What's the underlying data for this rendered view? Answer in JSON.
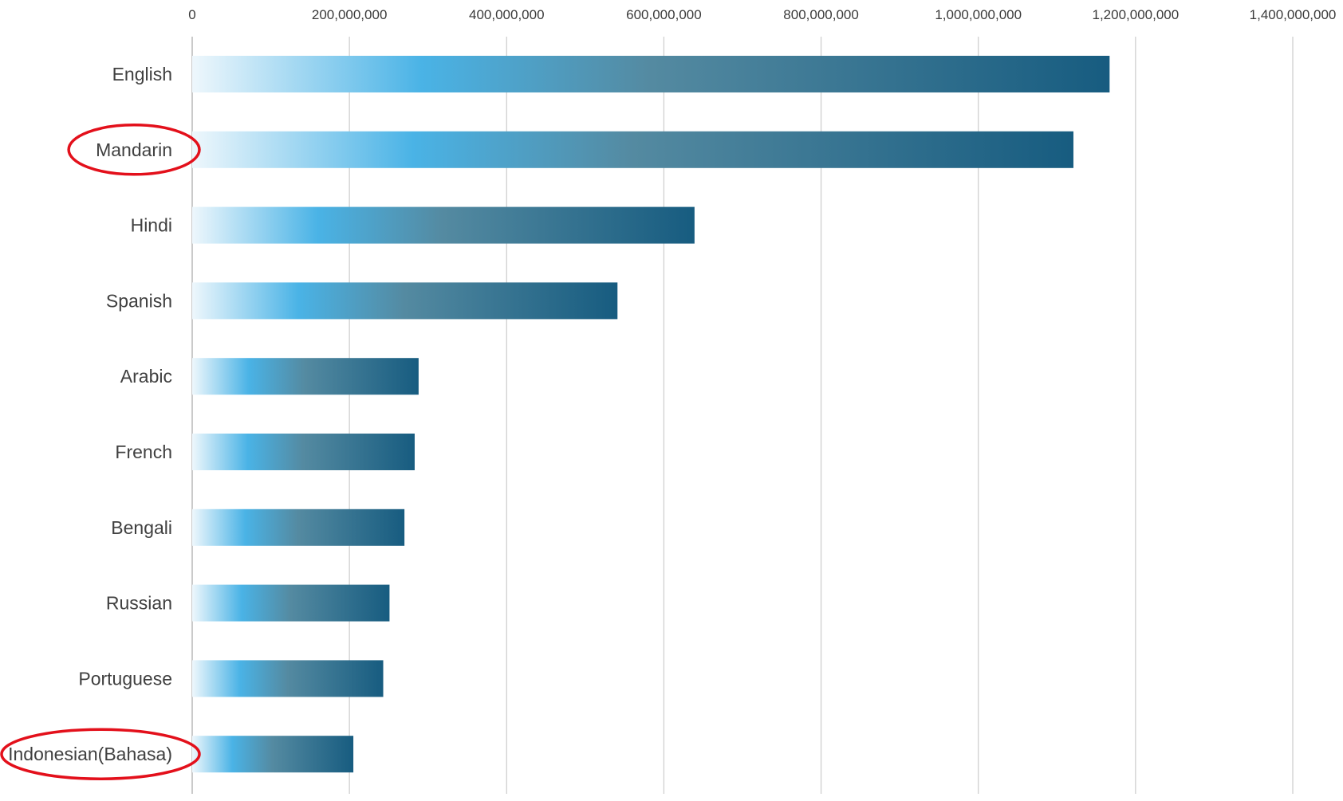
{
  "chart_data": {
    "type": "bar",
    "orientation": "horizontal",
    "title": "",
    "xlabel": "",
    "ylabel": "",
    "xlim": [
      0,
      1400000000
    ],
    "x_ticks": [
      {
        "value": 0,
        "label": "0"
      },
      {
        "value": 200000000,
        "label": "200,000,000"
      },
      {
        "value": 400000000,
        "label": "400,000,000"
      },
      {
        "value": 600000000,
        "label": "600,000,000"
      },
      {
        "value": 800000000,
        "label": "800,000,000"
      },
      {
        "value": 1000000000,
        "label": "1,000,000,000"
      },
      {
        "value": 1200000000,
        "label": "1,200,000,000"
      },
      {
        "value": 1400000000,
        "label": "1,400,000,000"
      }
    ],
    "x_axis_position": "top",
    "grid": true,
    "legend": "none",
    "categories": [
      "English",
      "Mandarin",
      "Hindi",
      "Spanish",
      "Arabic",
      "French",
      "Bengali",
      "Russian",
      "Portuguese",
      "Indonesian(Bahasa)"
    ],
    "values": [
      1167000000,
      1121000000,
      639000000,
      541000000,
      288000000,
      283000000,
      270000000,
      251000000,
      243000000,
      205000000
    ],
    "highlighted_categories": [
      "Mandarin",
      "Indonesian(Bahasa)"
    ],
    "colors": {
      "bar_gradient": [
        "#eef7fc",
        "#4ab3e6",
        "#548aa1",
        "#175c80"
      ],
      "highlight": "#e3101b",
      "gridline": "#cfcfcf"
    }
  }
}
